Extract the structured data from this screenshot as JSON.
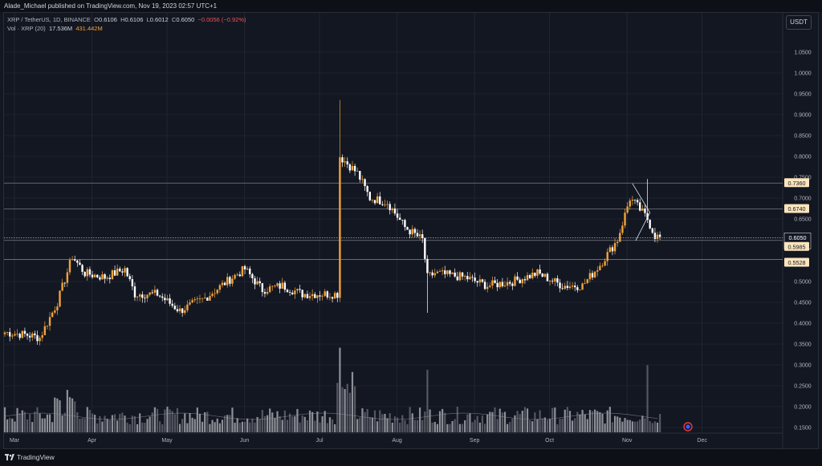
{
  "header": {
    "publisher_line": "Alade_Michael published on TradingView.com, Nov 19, 2023 02:57 UTC+1"
  },
  "legend": {
    "symbol": "XRP / TetherUS, 1D, BINANCE",
    "o_label": "O",
    "o_value": "0.6106",
    "h_label": "H",
    "h_value": "0.6106",
    "l_label": "L",
    "l_value": "0.6012",
    "c_label": "C",
    "c_value": "0.6050",
    "change": "−0.0056 (−0.92%)",
    "vol_label": "Vol · XRP (20)",
    "vol_value": "17.536M",
    "vol_ma_value": "431.442M"
  },
  "currency_button": "USDT",
  "footer": {
    "brand": "TradingView"
  },
  "colors": {
    "background": "#131722",
    "up": "#f0a33a",
    "down": "#ffffff",
    "grid": "#2a2e39",
    "axis_text": "#b2b5be",
    "highlight_label_bg": "#fbe5bd"
  },
  "chart_data": {
    "type": "candlestick",
    "title": "XRP / TetherUS, 1D, BINANCE",
    "x_axis": {
      "tick_labels": [
        "Mar",
        "Apr",
        "May",
        "Jun",
        "Jul",
        "Aug",
        "Sep",
        "Oct",
        "Nov",
        "Dec"
      ]
    },
    "y_axis": {
      "tick_labels": [
        "1.0500",
        "1.0000",
        "0.9500",
        "0.9000",
        "0.8500",
        "0.8000",
        "0.7500",
        "0.7000",
        "0.6500",
        "0.5000",
        "0.4500",
        "0.4000",
        "0.3500",
        "0.3000",
        "0.2500",
        "0.2000",
        "0.1500"
      ],
      "tick_values": [
        1.05,
        1.0,
        0.95,
        0.9,
        0.85,
        0.8,
        0.75,
        0.7,
        0.65,
        0.5,
        0.45,
        0.4,
        0.35,
        0.3,
        0.25,
        0.2,
        0.15
      ],
      "range": [
        0.13,
        1.12
      ]
    },
    "last_price_label": "0.6050",
    "countdown_label": "22:02:56",
    "horizontal_levels": [
      {
        "value": 0.736,
        "label": "0.7360"
      },
      {
        "value": 0.674,
        "label": "0.6740"
      },
      {
        "value": 0.5985,
        "label": "0.5985"
      },
      {
        "value": 0.5528,
        "label": "0.5528"
      }
    ],
    "price_anchors": [
      {
        "date": "2023-03-01",
        "price": 0.378
      },
      {
        "date": "2023-03-10",
        "price": 0.372
      },
      {
        "date": "2023-03-15",
        "price": 0.365
      },
      {
        "date": "2023-03-22",
        "price": 0.45
      },
      {
        "date": "2023-03-28",
        "price": 0.56
      },
      {
        "date": "2023-04-02",
        "price": 0.52
      },
      {
        "date": "2023-04-10",
        "price": 0.51
      },
      {
        "date": "2023-04-18",
        "price": 0.53
      },
      {
        "date": "2023-04-22",
        "price": 0.47
      },
      {
        "date": "2023-05-01",
        "price": 0.47
      },
      {
        "date": "2023-05-10",
        "price": 0.43
      },
      {
        "date": "2023-05-20",
        "price": 0.46
      },
      {
        "date": "2023-05-31",
        "price": 0.51
      },
      {
        "date": "2023-06-05",
        "price": 0.53
      },
      {
        "date": "2023-06-12",
        "price": 0.48
      },
      {
        "date": "2023-06-20",
        "price": 0.49
      },
      {
        "date": "2023-06-28",
        "price": 0.47
      },
      {
        "date": "2023-07-12",
        "price": 0.47
      },
      {
        "date": "2023-07-13",
        "price": 0.8
      },
      {
        "date": "2023-07-20",
        "price": 0.76
      },
      {
        "date": "2023-07-25",
        "price": 0.7
      },
      {
        "date": "2023-08-01",
        "price": 0.69
      },
      {
        "date": "2023-08-08",
        "price": 0.63
      },
      {
        "date": "2023-08-15",
        "price": 0.6
      },
      {
        "date": "2023-08-17",
        "price": 0.51
      },
      {
        "date": "2023-08-20",
        "price": 0.52
      },
      {
        "date": "2023-09-01",
        "price": 0.51
      },
      {
        "date": "2023-09-10",
        "price": 0.49
      },
      {
        "date": "2023-09-20",
        "price": 0.5
      },
      {
        "date": "2023-09-30",
        "price": 0.52
      },
      {
        "date": "2023-10-10",
        "price": 0.49
      },
      {
        "date": "2023-10-18",
        "price": 0.49
      },
      {
        "date": "2023-10-25",
        "price": 0.54
      },
      {
        "date": "2023-11-01",
        "price": 0.6
      },
      {
        "date": "2023-11-06",
        "price": 0.7
      },
      {
        "date": "2023-11-09",
        "price": 0.68
      },
      {
        "date": "2023-11-13",
        "price": 0.65
      },
      {
        "date": "2023-11-16",
        "price": 0.61
      },
      {
        "date": "2023-11-18",
        "price": 0.605
      }
    ],
    "notable_wicks": [
      {
        "date": "2023-07-13",
        "high": 0.935
      },
      {
        "date": "2023-08-17",
        "low": 0.425
      },
      {
        "date": "2023-11-13",
        "high": 0.746
      }
    ],
    "volume_series": {
      "name": "Vol · XRP (20)",
      "last": "17.536M",
      "ma": "431.442M"
    }
  }
}
